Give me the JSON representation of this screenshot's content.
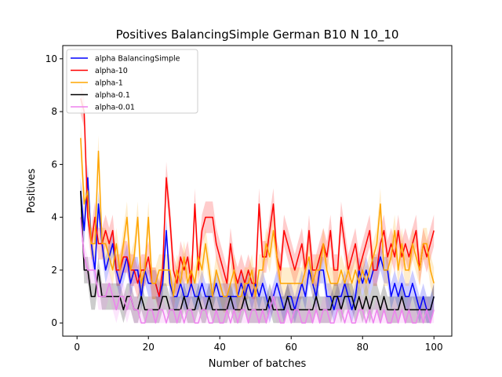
{
  "chart_data": {
    "type": "line",
    "title": "Positives BalancingSimple German B10 N 10_10",
    "xlabel": "Number of batches",
    "ylabel": "Positives",
    "xlim": [
      -4,
      105
    ],
    "ylim": [
      -0.5,
      10.5
    ],
    "xticks": [
      0,
      20,
      40,
      60,
      80,
      100
    ],
    "yticks": [
      0,
      2,
      4,
      6,
      8,
      10
    ],
    "grid": false,
    "legend_position": "upper-left",
    "series": [
      {
        "name": "alpha BalancingSimple",
        "color": "#0000ff",
        "x": [
          1,
          2,
          3,
          4,
          5,
          6,
          7,
          8,
          9,
          10,
          11,
          12,
          13,
          14,
          15,
          16,
          17,
          18,
          19,
          20,
          21,
          22,
          23,
          24,
          25,
          26,
          27,
          28,
          29,
          30,
          31,
          32,
          33,
          34,
          35,
          36,
          37,
          38,
          39,
          40,
          41,
          42,
          43,
          44,
          45,
          46,
          47,
          48,
          49,
          50,
          51,
          52,
          53,
          54,
          55,
          56,
          57,
          58,
          59,
          60,
          61,
          62,
          63,
          64,
          65,
          66,
          67,
          68,
          69,
          70,
          71,
          72,
          73,
          74,
          75,
          76,
          77,
          78,
          79,
          80,
          81,
          82,
          83,
          84,
          85,
          86,
          87,
          88,
          89,
          90,
          91,
          92,
          93,
          94,
          95,
          96,
          97,
          98,
          99,
          100
        ],
        "y": [
          5,
          3.5,
          5.5,
          3,
          2,
          4.5,
          3,
          2,
          2.5,
          3,
          2,
          1.5,
          2,
          2.5,
          1.5,
          2,
          2,
          1,
          2,
          1.5,
          1.5,
          1.5,
          1,
          1.5,
          3.5,
          1.5,
          1,
          1,
          1.5,
          1,
          1,
          1.5,
          1,
          1,
          1.5,
          1,
          1,
          1,
          1.5,
          1,
          1,
          1,
          1,
          1,
          1,
          1.5,
          1,
          1.5,
          1,
          1.5,
          1,
          1.5,
          1,
          0.5,
          1,
          1.5,
          1,
          0.5,
          1,
          1,
          0.5,
          1,
          1.5,
          1,
          2,
          1.5,
          1,
          2,
          2,
          1,
          1,
          0.5,
          1,
          1,
          1.5,
          1,
          0.5,
          1,
          2,
          1.5,
          2,
          1.5,
          2,
          2,
          2.5,
          2,
          2,
          1,
          1.5,
          1,
          1.5,
          1,
          1,
          1.5,
          1,
          0.5,
          1,
          0.5,
          0.5,
          1
        ],
        "band": 0.5
      },
      {
        "name": "alpha-10",
        "color": "#ff0000",
        "x": [
          1,
          2,
          3,
          4,
          5,
          6,
          7,
          8,
          9,
          10,
          11,
          12,
          13,
          14,
          15,
          16,
          17,
          18,
          19,
          20,
          21,
          22,
          23,
          24,
          25,
          26,
          27,
          28,
          29,
          30,
          31,
          32,
          33,
          34,
          35,
          36,
          37,
          38,
          39,
          40,
          41,
          42,
          43,
          44,
          45,
          46,
          47,
          48,
          49,
          50,
          51,
          52,
          53,
          54,
          55,
          56,
          57,
          58,
          59,
          60,
          61,
          62,
          63,
          64,
          65,
          66,
          67,
          68,
          69,
          70,
          71,
          72,
          73,
          74,
          75,
          76,
          77,
          78,
          79,
          80,
          81,
          82,
          83,
          84,
          85,
          86,
          87,
          88,
          89,
          90,
          91,
          92,
          93,
          94,
          95,
          96,
          97,
          98,
          99,
          100
        ],
        "y": [
          8.5,
          8,
          4,
          3,
          4,
          3,
          3,
          3.5,
          3,
          3.5,
          2,
          2,
          2.5,
          2.5,
          2,
          2,
          1.5,
          2,
          2,
          2.5,
          1.5,
          1.5,
          1,
          2,
          5.5,
          4,
          2,
          1.5,
          2.5,
          2,
          2.5,
          1.5,
          4.5,
          2,
          3.5,
          4,
          4,
          4,
          3,
          2.5,
          2,
          1.5,
          3,
          2,
          1.5,
          2,
          1.5,
          2,
          1.5,
          1.5,
          4.5,
          2.5,
          2.5,
          3.5,
          4.5,
          2.5,
          2,
          3.5,
          3,
          2.5,
          2,
          2.5,
          3,
          2,
          3.5,
          2,
          2,
          2.5,
          3,
          2.5,
          3.5,
          2,
          2,
          4,
          3,
          2,
          2.5,
          3,
          2,
          2.5,
          3,
          3.5,
          2,
          2,
          3,
          3.5,
          2.5,
          3,
          2.5,
          3.5,
          2.5,
          3,
          2.5,
          3,
          3.5,
          2,
          3,
          2.5,
          3,
          3.5
        ],
        "band": 0.6
      },
      {
        "name": "alpha-1",
        "color": "#ffa500",
        "x": [
          1,
          2,
          3,
          4,
          5,
          6,
          7,
          8,
          9,
          10,
          11,
          12,
          13,
          14,
          15,
          16,
          17,
          18,
          19,
          20,
          21,
          22,
          23,
          24,
          25,
          26,
          27,
          28,
          29,
          30,
          31,
          32,
          33,
          34,
          35,
          36,
          37,
          38,
          39,
          40,
          41,
          42,
          43,
          44,
          45,
          46,
          47,
          48,
          49,
          50,
          51,
          52,
          53,
          54,
          55,
          56,
          57,
          58,
          59,
          60,
          61,
          62,
          63,
          64,
          65,
          66,
          67,
          68,
          69,
          70,
          71,
          72,
          73,
          74,
          75,
          76,
          77,
          78,
          79,
          80,
          81,
          82,
          83,
          84,
          85,
          86,
          87,
          88,
          89,
          90,
          91,
          92,
          93,
          94,
          95,
          96,
          97,
          98,
          99,
          100
        ],
        "y": [
          7,
          4.5,
          5,
          3,
          3,
          6.5,
          3,
          3,
          2.5,
          2,
          3,
          2,
          3,
          4,
          2,
          2.5,
          4,
          1.5,
          2,
          4,
          1.5,
          1.5,
          2,
          2,
          2,
          2,
          1,
          2,
          1.5,
          2.5,
          1.5,
          2,
          1.5,
          2.5,
          2,
          3,
          2,
          1,
          2,
          1.5,
          1,
          1,
          1.5,
          2,
          1,
          1,
          1.5,
          1.5,
          2,
          1,
          2,
          2,
          3,
          2.5,
          3.5,
          2.5,
          1.5,
          1.5,
          1.5,
          1.5,
          1.5,
          1.5,
          1.5,
          2,
          2.5,
          1.5,
          2,
          2,
          3,
          2,
          1.5,
          1.5,
          1.5,
          2,
          1.5,
          2,
          1.5,
          2,
          1.5,
          2,
          1.5,
          2,
          2.5,
          3,
          4.5,
          2,
          2,
          2.5,
          3.5,
          2,
          3,
          2,
          2,
          3,
          2.5,
          2,
          3,
          3,
          2,
          1.5
        ],
        "band": 0.6
      },
      {
        "name": "alpha-0.1",
        "color": "#000000",
        "x": [
          1,
          2,
          3,
          4,
          5,
          6,
          7,
          8,
          9,
          10,
          11,
          12,
          13,
          14,
          15,
          16,
          17,
          18,
          19,
          20,
          21,
          22,
          23,
          24,
          25,
          26,
          27,
          28,
          29,
          30,
          31,
          32,
          33,
          34,
          35,
          36,
          37,
          38,
          39,
          40,
          41,
          42,
          43,
          44,
          45,
          46,
          47,
          48,
          49,
          50,
          51,
          52,
          53,
          54,
          55,
          56,
          57,
          58,
          59,
          60,
          61,
          62,
          63,
          64,
          65,
          66,
          67,
          68,
          69,
          70,
          71,
          72,
          73,
          74,
          75,
          76,
          77,
          78,
          79,
          80,
          81,
          82,
          83,
          84,
          85,
          86,
          87,
          88,
          89,
          90,
          91,
          92,
          93,
          94,
          95,
          96,
          97,
          98,
          99,
          100
        ],
        "y": [
          5,
          2,
          2,
          1,
          1,
          2,
          1,
          1,
          1,
          1,
          1,
          1,
          0.5,
          1,
          1,
          0.5,
          0.5,
          1,
          0.5,
          0.5,
          0.5,
          0.5,
          0.5,
          1,
          1,
          0.5,
          0.5,
          0.5,
          0.5,
          1,
          0.5,
          0.5,
          0.5,
          1,
          0.5,
          0.5,
          1,
          0.5,
          0.5,
          0.5,
          0.5,
          0.5,
          1,
          0.5,
          0.5,
          0.5,
          1,
          0.5,
          0.5,
          0.5,
          0.5,
          0.5,
          0.5,
          1,
          0.5,
          0.5,
          0.5,
          0.5,
          1,
          0.5,
          0.5,
          0.5,
          0.5,
          0.5,
          0.5,
          0.5,
          1,
          0.5,
          0.5,
          0.5,
          0.5,
          1,
          1,
          0.5,
          1,
          1,
          1,
          0.5,
          1,
          0.5,
          1,
          0.5,
          1,
          1,
          0.5,
          1,
          0.5,
          0.5,
          0.5,
          0.5,
          1,
          0.5,
          0.5,
          0.5,
          0.5,
          0.5,
          0.5,
          0.5,
          0.5,
          1
        ],
        "band": 0.5
      },
      {
        "name": "alpha-0.01",
        "color": "#ee82ee",
        "x": [
          1,
          2,
          3,
          4,
          5,
          6,
          7,
          8,
          9,
          10,
          11,
          12,
          13,
          14,
          15,
          16,
          17,
          18,
          19,
          20,
          21,
          22,
          23,
          24,
          25,
          26,
          27,
          28,
          29,
          30,
          31,
          32,
          33,
          34,
          35,
          36,
          37,
          38,
          39,
          40,
          41,
          42,
          43,
          44,
          45,
          46,
          47,
          48,
          49,
          50,
          51,
          52,
          53,
          54,
          55,
          56,
          57,
          58,
          59,
          60,
          61,
          62,
          63,
          64,
          65,
          66,
          67,
          68,
          69,
          70,
          71,
          72,
          73,
          74,
          75,
          76,
          77,
          78,
          79,
          80,
          81,
          82,
          83,
          84,
          85,
          86,
          87,
          88,
          89,
          90,
          91,
          92,
          93,
          94,
          95,
          96,
          97,
          98,
          99,
          100
        ],
        "y": [
          4,
          2.5,
          2,
          2,
          2,
          1,
          1,
          1,
          1.5,
          1,
          0.5,
          1,
          1,
          0.5,
          1,
          0.5,
          0.5,
          0,
          0,
          0.5,
          0.5,
          0,
          0.5,
          0.5,
          0,
          0.5,
          0.5,
          0,
          0.5,
          0,
          0.5,
          0.5,
          0,
          0,
          0.5,
          0.5,
          0,
          0,
          0.5,
          0,
          0,
          0.5,
          0,
          0.5,
          0,
          0.5,
          0.5,
          0,
          0.5,
          0.5,
          0,
          0.5,
          0,
          0.5,
          1,
          0.5,
          0,
          0,
          0.5,
          0,
          0.5,
          0.5,
          0,
          0,
          0.5,
          0,
          0.5,
          0,
          0.5,
          0.5,
          0,
          0,
          0.5,
          0.5,
          0,
          0.5,
          0,
          0,
          0.5,
          0.5,
          0,
          0.5,
          0,
          0.5,
          0,
          0.5,
          0,
          0,
          0.5,
          0,
          0.5,
          0,
          0.5,
          0,
          0,
          0.5,
          0,
          0.5,
          0,
          0.5
        ],
        "band": 0.5
      }
    ]
  }
}
